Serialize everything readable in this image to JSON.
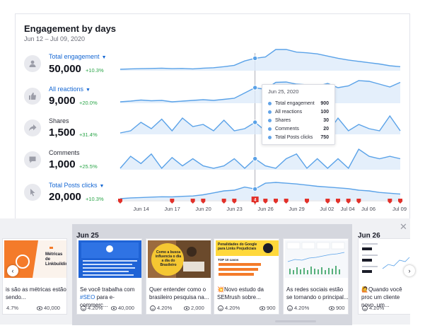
{
  "header": {
    "title": "Engagement by days",
    "date_range": "Jun 12 – Jul 09, 2020"
  },
  "metrics": [
    {
      "label": "Total engagement",
      "dropdown": true,
      "value": "50,000",
      "change": "+10.3%",
      "icon": "person-icon"
    },
    {
      "label": "All reactions",
      "dropdown": true,
      "value": "9,000",
      "change": "+20.0%",
      "icon": "thumbs-up-icon"
    },
    {
      "label": "Shares",
      "dropdown": false,
      "value": "1,500",
      "change": "+31.4%",
      "icon": "share-icon"
    },
    {
      "label": "Comments",
      "dropdown": false,
      "value": "1,000",
      "change": "+25.5%",
      "icon": "comment-icon"
    },
    {
      "label": "Total Posts clicks",
      "dropdown": true,
      "value": "20,000",
      "change": "+10.3%",
      "icon": "cursor-icon"
    }
  ],
  "chart_data": {
    "type": "line",
    "x": [
      "Jun 12",
      "Jun 13",
      "Jun 14",
      "Jun 15",
      "Jun 16",
      "Jun 17",
      "Jun 18",
      "Jun 19",
      "Jun 20",
      "Jun 21",
      "Jun 22",
      "Jun 23",
      "Jun 24",
      "Jun 25",
      "Jun 26",
      "Jun 27",
      "Jun 28",
      "Jun 29",
      "Jun 30",
      "Jul 01",
      "Jul 02",
      "Jul 03",
      "Jul 04",
      "Jul 05",
      "Jul 06",
      "Jul 07",
      "Jul 08",
      "Jul 09"
    ],
    "x_tick_labels": [
      "Jun 14",
      "Jun 17",
      "Jun 20",
      "Jun 23",
      "Jun 26",
      "Jun 29",
      "Jul 02",
      "Jul 04",
      "Jul 06",
      "Jul 09"
    ],
    "series": [
      {
        "name": "Total engagement",
        "values": [
          400,
          420,
          430,
          440,
          450,
          430,
          440,
          420,
          450,
          470,
          520,
          580,
          780,
          900,
          960,
          1300,
          1300,
          1180,
          1150,
          1100,
          1000,
          900,
          820,
          760,
          700,
          640,
          560,
          520
        ]
      },
      {
        "name": "All reactions",
        "values": [
          60,
          62,
          65,
          63,
          64,
          60,
          62,
          64,
          66,
          64,
          67,
          70,
          85,
          100,
          95,
          115,
          116,
          110,
          108,
          104,
          112,
          100,
          105,
          120,
          118,
          110,
          102,
          115
        ]
      },
      {
        "name": "Shares",
        "values": [
          20,
          22,
          30,
          24,
          33,
          22,
          34,
          26,
          28,
          22,
          32,
          22,
          24,
          30,
          22,
          32,
          40,
          26,
          24,
          32,
          20,
          34,
          22,
          28,
          24,
          22,
          36,
          22
        ]
      },
      {
        "name": "Comments",
        "values": [
          12,
          22,
          16,
          24,
          12,
          21,
          14,
          20,
          14,
          12,
          14,
          20,
          12,
          20,
          14,
          12,
          20,
          24,
          12,
          20,
          12,
          20,
          12,
          28,
          22,
          20,
          22,
          20
        ]
      },
      {
        "name": "Total Posts clicks",
        "values": [
          500,
          520,
          530,
          540,
          550,
          545,
          560,
          570,
          600,
          650,
          700,
          720,
          800,
          750,
          900,
          920,
          900,
          880,
          850,
          820,
          800,
          780,
          760,
          720,
          700,
          660,
          640,
          620
        ]
      }
    ],
    "highlight": "Jun 25",
    "markers_count_label": "4",
    "tooltip": {
      "date": "Jun 25, 2020",
      "rows": [
        {
          "label": "Total engagement",
          "value": "900"
        },
        {
          "label": "All reactions",
          "value": "100"
        },
        {
          "label": "Shares",
          "value": "30"
        },
        {
          "label": "Comments",
          "value": "20"
        },
        {
          "label": "Total Posts clicks",
          "value": "750"
        }
      ]
    }
  },
  "posts_panel": {
    "group_date": "Jun 25",
    "next_group_date": "Jun 26",
    "posts": [
      {
        "text": "is são as métricas estão sendo...",
        "rate": "4.7%",
        "views": "40,000",
        "thumb": "orange"
      },
      {
        "text_plain": "Se você trabalha com ",
        "text_tag": "#SEO",
        "text_rest": " para e-commerc...",
        "rate": "4.20%",
        "views": "40,000",
        "thumb": "blue"
      },
      {
        "text": "Quer entender como o brasileiro pesquisa na...",
        "rate": "4.20%",
        "views": "2,000",
        "thumb": "photo"
      },
      {
        "text": "💥Novo estudo da SEMrush sobre...",
        "rate": "4.20%",
        "views": "900",
        "thumb": "yellow"
      },
      {
        "text": "As redes sociais estão se tornando o principal...",
        "rate": "4.20%",
        "views": "900",
        "thumb": "dashboard"
      },
      {
        "text": "🙋Quando você proc um cliente novo, um...",
        "rate": "4.20%",
        "views": "",
        "thumb": "report"
      }
    ],
    "thumb_texts": {
      "orange": "Métricas de Linkbuilding",
      "yellow_title": "Penalidades do Google para Links Prejudiciais",
      "yellow_sub": "TOP 10 casos",
      "photo_bubble": "Como a busca influencia o dia a dia do Brasileiro"
    }
  },
  "colors": {
    "accent": "#1567d3",
    "line": "#5aa2e8",
    "fill": "#dbeaf9",
    "positive": "#2aa548",
    "marker": "#e2312a"
  }
}
